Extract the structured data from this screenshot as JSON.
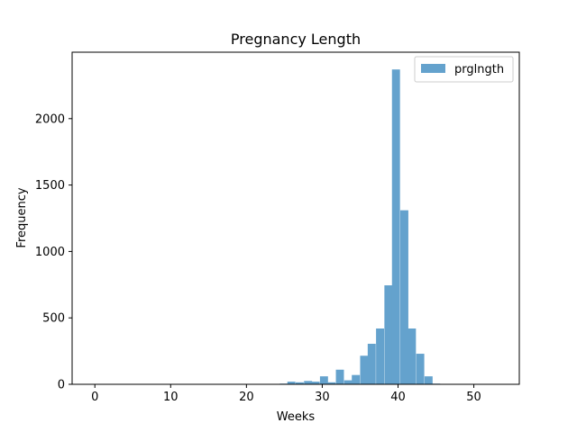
{
  "chart_data": {
    "type": "bar",
    "title": "Pregnancy Length",
    "xlabel": "Weeks",
    "ylabel": "Frequency",
    "xlim": [
      -3,
      56
    ],
    "ylim": [
      0,
      2500
    ],
    "xticks": [
      0,
      10,
      20,
      30,
      40,
      50
    ],
    "yticks": [
      0,
      500,
      1000,
      1500,
      2000
    ],
    "bin_width": 1.06,
    "legend": {
      "position": "top-right",
      "entries": [
        "prglngth"
      ]
    },
    "grid": false,
    "series": [
      {
        "name": "prglngth",
        "color": "#64a2cd",
        "bins": [
          {
            "x": 21.2,
            "value": 3
          },
          {
            "x": 22.3,
            "value": 1
          },
          {
            "x": 23.3,
            "value": 1
          },
          {
            "x": 24.4,
            "value": 5
          },
          {
            "x": 25.4,
            "value": 20
          },
          {
            "x": 26.5,
            "value": 15
          },
          {
            "x": 27.6,
            "value": 25
          },
          {
            "x": 28.6,
            "value": 20
          },
          {
            "x": 29.7,
            "value": 60
          },
          {
            "x": 30.7,
            "value": 15
          },
          {
            "x": 31.8,
            "value": 110
          },
          {
            "x": 32.9,
            "value": 30
          },
          {
            "x": 33.9,
            "value": 70
          },
          {
            "x": 35.0,
            "value": 215
          },
          {
            "x": 36.0,
            "value": 305
          },
          {
            "x": 37.1,
            "value": 420
          },
          {
            "x": 38.2,
            "value": 745
          },
          {
            "x": 39.2,
            "value": 2370
          },
          {
            "x": 40.3,
            "value": 1310
          },
          {
            "x": 41.3,
            "value": 420
          },
          {
            "x": 42.4,
            "value": 230
          },
          {
            "x": 43.5,
            "value": 60
          },
          {
            "x": 44.5,
            "value": 5
          },
          {
            "x": 45.6,
            "value": 2
          },
          {
            "x": 46.6,
            "value": 1
          },
          {
            "x": 47.7,
            "value": 1
          },
          {
            "x": 48.8,
            "value": 1
          },
          {
            "x": 50.9,
            "value": 1
          }
        ]
      }
    ]
  }
}
